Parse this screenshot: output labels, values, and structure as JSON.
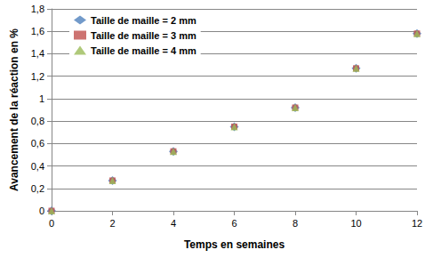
{
  "chart_data": {
    "type": "scatter",
    "x_label": "Temps en semaines",
    "y_label": "Avancement de la réaction en %",
    "xlim": [
      0,
      12
    ],
    "xticks": [
      0,
      2,
      4,
      6,
      8,
      10,
      12
    ],
    "ylim": [
      0,
      1.8
    ],
    "yticks": [
      0,
      {
        "value": 0.2,
        "label": "0,2"
      },
      {
        "value": 0.4,
        "label": "0,4"
      },
      {
        "value": 0.6,
        "label": "0,6"
      },
      {
        "value": 0.8,
        "label": "0,8"
      },
      1,
      {
        "value": 1.2,
        "label": "1,2"
      },
      {
        "value": 1.4,
        "label": "1,4"
      },
      {
        "value": 1.6,
        "label": "1,6"
      },
      {
        "value": 1.8,
        "label": "1,8"
      }
    ],
    "grid": true,
    "legend": "top-left",
    "series": [
      {
        "name": "Taille de maille = 2 mm",
        "color": "#4f81bd",
        "marker": "diamond",
        "x": [
          0,
          2,
          4,
          6,
          8,
          10,
          12
        ],
        "values": [
          0,
          0.27,
          0.53,
          0.75,
          0.92,
          1.27,
          1.58
        ]
      },
      {
        "name": "Taille de maille = 3 mm",
        "color": "#c0504d",
        "marker": "square",
        "x": [
          0,
          2,
          4,
          6,
          8,
          10,
          12
        ],
        "values": [
          0,
          0.27,
          0.53,
          0.75,
          0.92,
          1.27,
          1.58
        ]
      },
      {
        "name": "Taille de maille = 4 mm",
        "color": "#9bbb59",
        "marker": "triangle",
        "x": [
          0,
          2,
          4,
          6,
          8,
          10,
          12
        ],
        "values": [
          0,
          0.27,
          0.53,
          0.75,
          0.92,
          1.27,
          1.58
        ]
      }
    ]
  }
}
